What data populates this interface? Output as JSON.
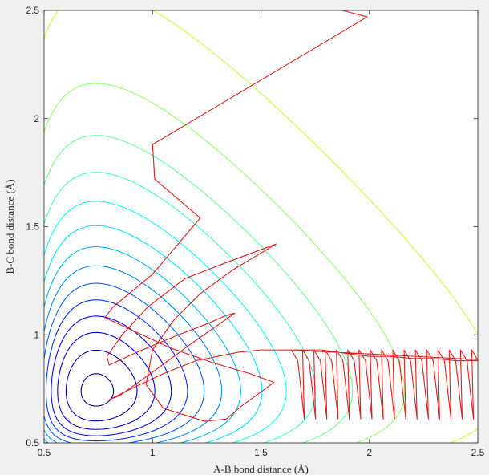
{
  "chart_data": {
    "type": "contour",
    "xlabel": "A-B bond distance (Å)",
    "ylabel": "B-C bond distance (Å)",
    "xlim": [
      0.5,
      2.5
    ],
    "ylim": [
      0.5,
      2.5
    ],
    "x_ticks": [
      0.5,
      1,
      1.5,
      2,
      2.5
    ],
    "x_tick_labels": [
      "0.5",
      "1",
      "1.5",
      "2",
      "2.5"
    ],
    "y_ticks": [
      0.5,
      1,
      1.5,
      2,
      2.5
    ],
    "y_tick_labels": [
      "0.5",
      "1",
      "1.5",
      "2",
      "2.5"
    ],
    "grid": false,
    "colormap": "jet",
    "contour_levels": 24,
    "surface": {
      "well_depth": 1.0,
      "equilibrium_distance": 0.74,
      "morse_alpha": 1.9,
      "saddle_point": [
        0.93,
        0.93
      ]
    },
    "trajectory_color": "#e11d1d",
    "trajectory": [
      [
        1.75,
        2.58
      ],
      [
        1.8,
        2.52
      ],
      [
        1.99,
        2.47
      ],
      [
        1.0,
        1.88
      ],
      [
        1.01,
        1.72
      ],
      [
        1.22,
        1.54
      ],
      [
        1.0,
        1.28
      ],
      [
        0.82,
        1.13
      ],
      [
        0.78,
        1.08
      ],
      [
        1.08,
        0.94
      ],
      [
        1.28,
        0.87
      ],
      [
        1.45,
        0.82
      ],
      [
        1.56,
        0.78
      ],
      [
        1.41,
        0.67
      ],
      [
        1.34,
        0.61
      ],
      [
        1.24,
        0.6
      ],
      [
        1.05,
        0.66
      ],
      [
        0.97,
        0.77
      ],
      [
        1.0,
        0.93
      ],
      [
        1.1,
        1.07
      ],
      [
        1.22,
        1.19
      ],
      [
        1.37,
        1.3
      ],
      [
        1.57,
        1.42
      ],
      [
        1.33,
        1.33
      ],
      [
        1.15,
        1.26
      ],
      [
        0.98,
        1.13
      ],
      [
        0.86,
        1.0
      ],
      [
        0.79,
        0.9
      ],
      [
        0.8,
        0.86
      ],
      [
        0.93,
        0.92
      ],
      [
        1.12,
        1.0
      ],
      [
        1.25,
        1.05
      ],
      [
        1.34,
        1.09
      ],
      [
        1.38,
        1.1
      ],
      [
        1.18,
        0.96
      ],
      [
        0.99,
        0.82
      ],
      [
        0.85,
        0.72
      ],
      [
        0.8,
        0.7
      ],
      [
        0.9,
        0.75
      ],
      [
        1.05,
        0.82
      ],
      [
        1.2,
        0.88
      ],
      [
        1.3,
        0.9
      ],
      [
        1.4,
        0.92
      ],
      [
        1.5,
        0.93
      ],
      [
        1.55,
        0.93
      ],
      [
        1.6,
        0.93
      ],
      [
        1.66,
        0.93
      ],
      [
        1.72,
        0.93
      ],
      [
        1.78,
        0.93
      ],
      [
        1.85,
        0.92
      ],
      [
        1.92,
        0.91
      ],
      [
        2.0,
        0.9
      ],
      [
        2.1,
        0.9
      ],
      [
        2.2,
        0.89
      ],
      [
        2.3,
        0.89
      ],
      [
        2.4,
        0.88
      ],
      [
        2.5,
        0.88
      ],
      [
        2.6,
        0.88
      ]
    ]
  }
}
